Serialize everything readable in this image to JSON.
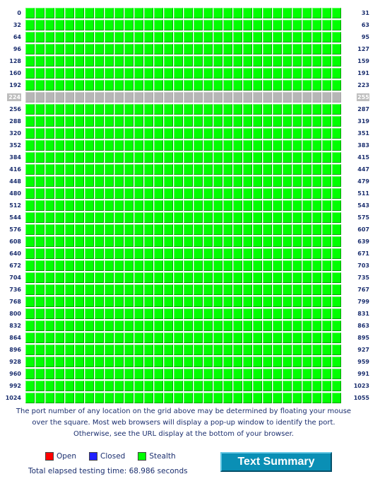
{
  "port_grid": {
    "ports_per_row": 32,
    "highlighted_row_start": 224,
    "rows": [
      {
        "start": "0",
        "end": "31"
      },
      {
        "start": "32",
        "end": "63"
      },
      {
        "start": "64",
        "end": "95"
      },
      {
        "start": "96",
        "end": "127"
      },
      {
        "start": "128",
        "end": "159"
      },
      {
        "start": "160",
        "end": "191"
      },
      {
        "start": "192",
        "end": "223"
      },
      {
        "start": "224",
        "end": "255"
      },
      {
        "start": "256",
        "end": "287"
      },
      {
        "start": "288",
        "end": "319"
      },
      {
        "start": "320",
        "end": "351"
      },
      {
        "start": "352",
        "end": "383"
      },
      {
        "start": "384",
        "end": "415"
      },
      {
        "start": "416",
        "end": "447"
      },
      {
        "start": "448",
        "end": "479"
      },
      {
        "start": "480",
        "end": "511"
      },
      {
        "start": "512",
        "end": "543"
      },
      {
        "start": "544",
        "end": "575"
      },
      {
        "start": "576",
        "end": "607"
      },
      {
        "start": "608",
        "end": "639"
      },
      {
        "start": "640",
        "end": "671"
      },
      {
        "start": "672",
        "end": "703"
      },
      {
        "start": "704",
        "end": "735"
      },
      {
        "start": "736",
        "end": "767"
      },
      {
        "start": "768",
        "end": "799"
      },
      {
        "start": "800",
        "end": "831"
      },
      {
        "start": "832",
        "end": "863"
      },
      {
        "start": "864",
        "end": "895"
      },
      {
        "start": "896",
        "end": "927"
      },
      {
        "start": "928",
        "end": "959"
      },
      {
        "start": "960",
        "end": "991"
      },
      {
        "start": "992",
        "end": "1023"
      },
      {
        "start": "1024",
        "end": "1055"
      }
    ],
    "port_status": "stealth",
    "highlight_color": "#b6b6b6"
  },
  "explanation": "The port number of any location on the grid above may be determined by floating your mouse over the square. Most web browsers will display a pop-up window to identify the port. Otherwise, see the URL display at the bottom of your browser.",
  "legend": {
    "open": {
      "label": "Open",
      "color": "#ff0000"
    },
    "closed": {
      "label": "Closed",
      "color": "#2222ff"
    },
    "stealth": {
      "label": "Stealth",
      "color": "#00ff00"
    }
  },
  "elapsed_text": "Total elapsed testing time: 68.986 seconds",
  "text_summary_button": {
    "label": "Text Summary",
    "color": "#0a8fb5"
  }
}
